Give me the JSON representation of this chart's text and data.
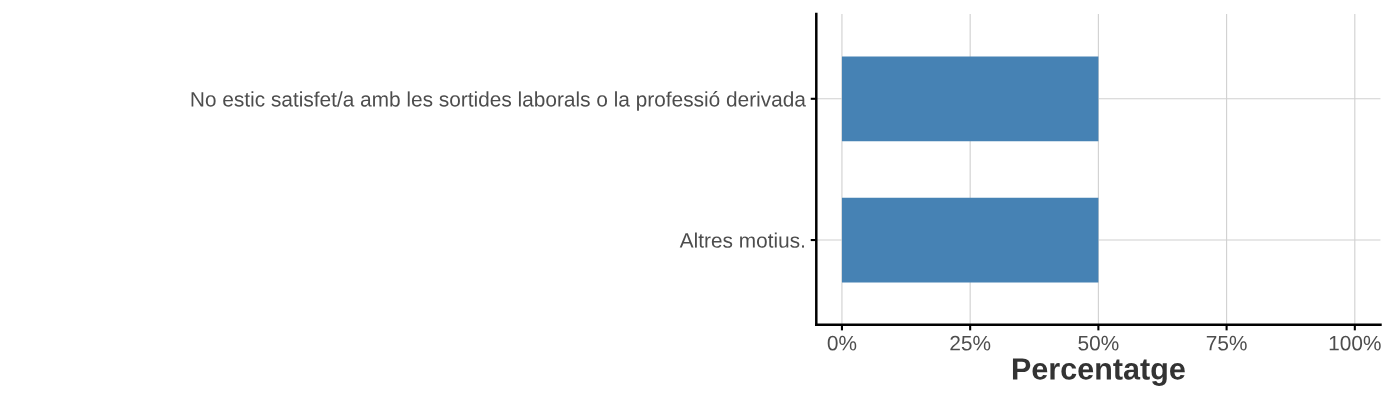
{
  "chart_data": {
    "type": "bar",
    "orientation": "horizontal",
    "xlabel": "Percentatge",
    "categories": [
      "No estic satisfet/a amb les sortides laborals o la professió derivada",
      "Altres motius."
    ],
    "series": [
      {
        "color": "#4682b4",
        "values": [
          50,
          50
        ]
      }
    ],
    "xlim": [
      -5,
      105
    ],
    "xticks": [
      {
        "value": 0,
        "label": "0%"
      },
      {
        "value": 25,
        "label": "25%"
      },
      {
        "value": 50,
        "label": "50%"
      },
      {
        "value": 75,
        "label": "75%"
      },
      {
        "value": 100,
        "label": "100%"
      }
    ],
    "grid": true
  }
}
